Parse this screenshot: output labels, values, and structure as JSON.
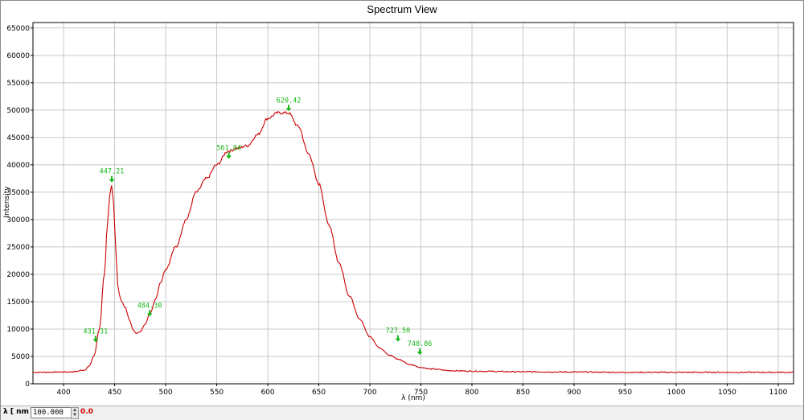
{
  "window": {
    "title": "Spectrum View"
  },
  "footer": {
    "lambda_label": "λ [ nm ]",
    "lambda_value": "100.000",
    "readout": "0.0"
  },
  "colors": {
    "curve": "#cc0000",
    "peak_marker": "#18b818",
    "grid": "#c8c8c8",
    "readout": "#d00000"
  },
  "icons": {
    "spinner": "spin-arrows-icon",
    "peak": "down-arrow-icon"
  },
  "chart_data": {
    "type": "line",
    "title": "Spectrum View",
    "xlabel": "λ (nm)",
    "ylabel": "Intensity",
    "xlim": [
      370,
      1115
    ],
    "ylim": [
      0,
      66000
    ],
    "grid": true,
    "x_ticks": [
      400,
      450,
      500,
      550,
      600,
      650,
      700,
      750,
      800,
      850,
      900,
      950,
      1000,
      1050,
      1100
    ],
    "y_ticks": [
      0,
      5000,
      10000,
      15000,
      20000,
      25000,
      30000,
      35000,
      40000,
      45000,
      50000,
      55000,
      60000,
      65000
    ],
    "series": [
      {
        "x": [
          370,
          400,
          410,
          420,
          425,
          430,
          435,
          440,
          443,
          445,
          447,
          449,
          451,
          453,
          455,
          457,
          460,
          465,
          468,
          472,
          475,
          480,
          485,
          490,
          495,
          500,
          510,
          520,
          530,
          540,
          550,
          561,
          570,
          580,
          590,
          600,
          610,
          620,
          630,
          640,
          650,
          660,
          670,
          680,
          690,
          700,
          710,
          720,
          727,
          740,
          750,
          760,
          780,
          800,
          850,
          900,
          950,
          1000,
          1050,
          1100,
          1115
        ],
        "y": [
          2100,
          2150,
          2200,
          2500,
          3200,
          5200,
          10000,
          20000,
          29000,
          34000,
          36500,
          33000,
          25000,
          18000,
          16000,
          15000,
          14000,
          11500,
          9800,
          9200,
          9500,
          11000,
          13000,
          15500,
          18500,
          21000,
          25000,
          30000,
          35000,
          37500,
          40000,
          42500,
          43000,
          43500,
          45500,
          48500,
          49500,
          49500,
          47000,
          42000,
          36500,
          29000,
          22000,
          16000,
          11800,
          8600,
          6500,
          5200,
          4500,
          3500,
          3000,
          2700,
          2400,
          2300,
          2200,
          2150,
          2100,
          2100,
          2100,
          2100,
          2100
        ]
      }
    ],
    "peaks": [
      {
        "x": 431.31,
        "y": 7300,
        "label": "431.31"
      },
      {
        "x": 447.21,
        "y": 36500,
        "label": "447.21"
      },
      {
        "x": 484.3,
        "y": 12000,
        "label": "484.30"
      },
      {
        "x": 561.84,
        "y": 40800,
        "label": "561.84"
      },
      {
        "x": 620.42,
        "y": 49500,
        "label": "620.42"
      },
      {
        "x": 727.5,
        "y": 7400,
        "label": "727.50"
      },
      {
        "x": 748.86,
        "y": 5000,
        "label": "748.86"
      }
    ]
  }
}
